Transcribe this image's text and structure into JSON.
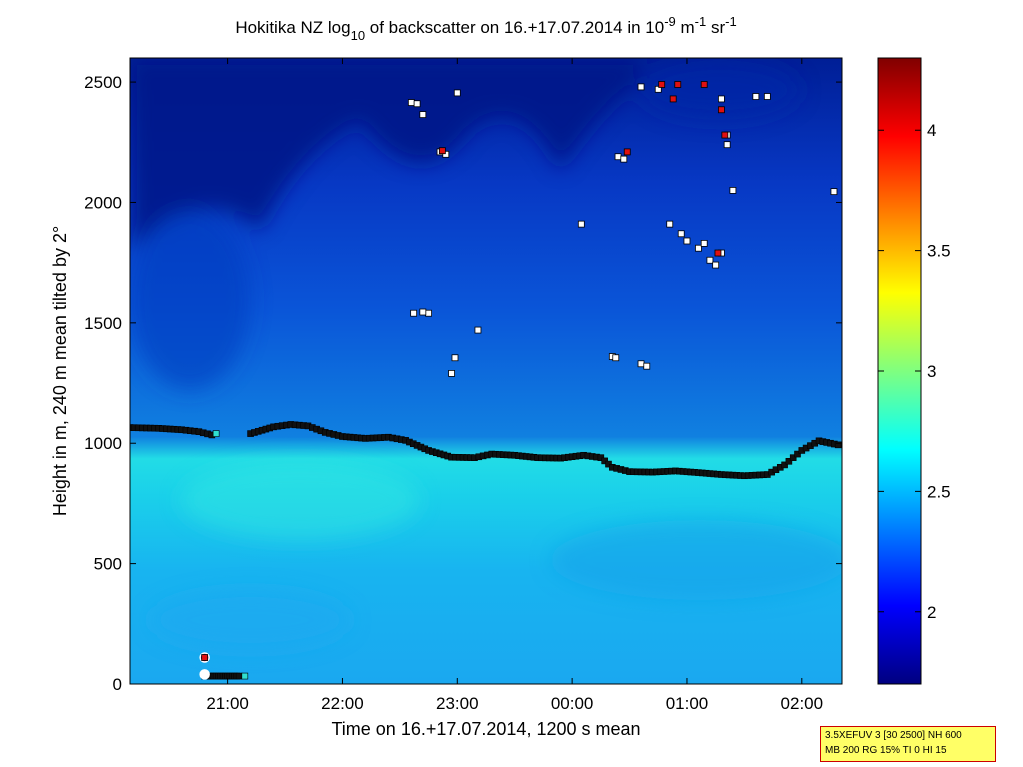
{
  "chart_data": {
    "type": "heatmap",
    "title": {
      "prefix": "Hokitika NZ log",
      "sub": "10",
      "middle": " of backscatter on 16.+17.07.2014 in 10",
      "exp1": "-9",
      "unit1": " m",
      "exp2": "-1",
      "unit2": " sr",
      "exp3": "-1"
    },
    "xlabel": "Time on 16.+17.07.2014, 1200 s mean",
    "ylabel": "Height in m, 240 m mean tilted by 2°",
    "x_ticks": [
      "21:00",
      "22:00",
      "23:00",
      "00:00",
      "01:00",
      "02:00"
    ],
    "x_tick_hours": [
      21,
      22,
      23,
      24,
      25,
      26
    ],
    "xlim_hours": [
      20.15,
      26.35
    ],
    "y_ticks": [
      "0",
      "500",
      "1000",
      "1500",
      "2000",
      "2500"
    ],
    "y_tick_values": [
      0,
      500,
      1000,
      1500,
      2000,
      2500
    ],
    "ylim": [
      0,
      2600
    ],
    "colorbar": {
      "ticks": [
        "2",
        "2.5",
        "3",
        "3.5",
        "4"
      ],
      "tick_values": [
        2,
        2.5,
        3,
        3.5,
        4
      ],
      "range": [
        1.7,
        4.3
      ],
      "colormap": "jet"
    },
    "cloud_base_layer": [
      [
        20.15,
        1065
      ],
      [
        20.4,
        1062
      ],
      [
        20.6,
        1056
      ],
      [
        20.75,
        1048
      ],
      [
        20.9,
        1030
      ],
      [
        21.2,
        1040
      ],
      [
        21.4,
        1068
      ],
      [
        21.55,
        1078
      ],
      [
        21.7,
        1072
      ],
      [
        21.85,
        1045
      ],
      [
        22.0,
        1028
      ],
      [
        22.2,
        1020
      ],
      [
        22.4,
        1025
      ],
      [
        22.55,
        1012
      ],
      [
        22.75,
        970
      ],
      [
        22.95,
        942
      ],
      [
        23.15,
        940
      ],
      [
        23.3,
        955
      ],
      [
        23.5,
        950
      ],
      [
        23.7,
        940
      ],
      [
        23.9,
        938
      ],
      [
        24.1,
        950
      ],
      [
        24.25,
        940
      ],
      [
        24.35,
        900
      ],
      [
        24.5,
        882
      ],
      [
        24.7,
        880
      ],
      [
        24.9,
        885
      ],
      [
        25.1,
        878
      ],
      [
        25.3,
        870
      ],
      [
        25.5,
        865
      ],
      [
        25.7,
        870
      ],
      [
        25.85,
        910
      ],
      [
        26.0,
        970
      ],
      [
        26.15,
        1010
      ],
      [
        26.35,
        990
      ]
    ],
    "surface_layer": [
      [
        20.8,
        35
      ],
      [
        20.9,
        33
      ],
      [
        21.0,
        33
      ],
      [
        21.1,
        33
      ]
    ],
    "surface_markers": [
      [
        20.8,
        110
      ],
      [
        20.8,
        40
      ]
    ],
    "scatter_white": [
      [
        22.6,
        2415
      ],
      [
        22.65,
        2410
      ],
      [
        22.7,
        2365
      ],
      [
        23.0,
        2455
      ],
      [
        22.85,
        2210
      ],
      [
        22.9,
        2200
      ],
      [
        22.62,
        1540
      ],
      [
        22.75,
        1540
      ],
      [
        22.7,
        1545
      ],
      [
        23.18,
        1470
      ],
      [
        22.98,
        1355
      ],
      [
        22.95,
        1290
      ],
      [
        24.08,
        1910
      ],
      [
        24.4,
        2190
      ],
      [
        24.45,
        2180
      ],
      [
        24.35,
        1360
      ],
      [
        24.38,
        1355
      ],
      [
        24.6,
        1330
      ],
      [
        24.65,
        1320
      ],
      [
        24.6,
        2480
      ],
      [
        24.75,
        2470
      ],
      [
        25.3,
        2430
      ],
      [
        25.35,
        2240
      ],
      [
        25.4,
        2050
      ],
      [
        25.6,
        2440
      ],
      [
        25.7,
        2440
      ],
      [
        26.28,
        2045
      ],
      [
        24.85,
        1910
      ],
      [
        24.95,
        1870
      ],
      [
        25.0,
        1840
      ],
      [
        25.1,
        1810
      ],
      [
        25.2,
        1760
      ],
      [
        25.25,
        1740
      ],
      [
        25.3,
        1790
      ],
      [
        25.35,
        2280
      ],
      [
        25.15,
        1830
      ]
    ],
    "scatter_red": [
      [
        24.78,
        2490
      ],
      [
        24.88,
        2430
      ],
      [
        24.92,
        2490
      ],
      [
        25.15,
        2490
      ],
      [
        25.3,
        2385
      ],
      [
        25.33,
        2280
      ],
      [
        24.48,
        2210
      ],
      [
        22.87,
        2215
      ],
      [
        25.27,
        1790
      ],
      [
        20.8,
        110
      ]
    ]
  },
  "info_box": {
    "line1": "3.5XEFUV 3 [30 2500] NH 600",
    "line2": "MB 200 RG 15% TI 0 HI 15"
  }
}
